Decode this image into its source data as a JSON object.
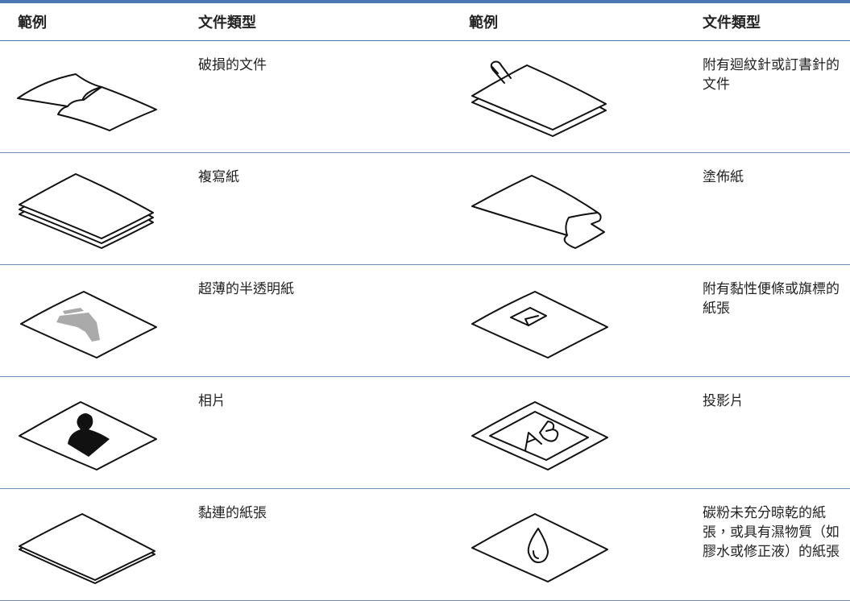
{
  "table": {
    "headers": [
      "範例",
      "文件類型",
      "範例",
      "文件類型"
    ],
    "rows": [
      [
        "破損的文件",
        "附有迴紋針或訂書針的文件"
      ],
      [
        "複寫紙",
        "塗佈紙"
      ],
      [
        "超薄的半透明紙",
        "附有黏性便條或旗標的紙張"
      ],
      [
        "相片",
        "投影片"
      ],
      [
        "黏連的紙張",
        "碳粉未充分晾乾的紙張，或具有濕物質（如膠水或修正液）的紙張"
      ]
    ]
  }
}
